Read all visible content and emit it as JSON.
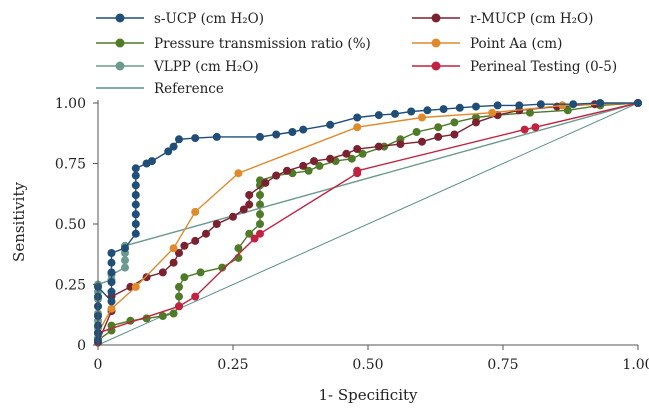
{
  "chart_data": {
    "type": "line",
    "xlabel": "1- Specificity",
    "ylabel": "Sensitivity",
    "xlim": [
      0,
      1
    ],
    "ylim": [
      0,
      1
    ],
    "x_ticks": [
      "0",
      "0.25",
      "0.50",
      "0.75",
      "1.00"
    ],
    "y_ticks": [
      "0",
      "0.25",
      "0.50",
      "0.75",
      "1.00"
    ],
    "grid": false,
    "legend_position": "top",
    "series": [
      {
        "name": "s-UCP (cm H₂O)",
        "color": "#1f4e79",
        "marker": "circle",
        "points": [
          [
            0,
            0.02
          ],
          [
            0,
            0.05
          ],
          [
            0,
            0.08
          ],
          [
            0,
            0.12
          ],
          [
            0,
            0.16
          ],
          [
            0,
            0.2
          ],
          [
            0,
            0.24
          ],
          [
            0.025,
            0.18
          ],
          [
            0.025,
            0.22
          ],
          [
            0.025,
            0.26
          ],
          [
            0.025,
            0.3
          ],
          [
            0.025,
            0.34
          ],
          [
            0.025,
            0.38
          ],
          [
            0.05,
            0.4
          ],
          [
            0.07,
            0.46
          ],
          [
            0.07,
            0.5
          ],
          [
            0.07,
            0.54
          ],
          [
            0.07,
            0.58
          ],
          [
            0.07,
            0.62
          ],
          [
            0.07,
            0.66
          ],
          [
            0.07,
            0.7
          ],
          [
            0.07,
            0.73
          ],
          [
            0.09,
            0.75
          ],
          [
            0.1,
            0.76
          ],
          [
            0.13,
            0.8
          ],
          [
            0.14,
            0.82
          ],
          [
            0.15,
            0.85
          ],
          [
            0.18,
            0.855
          ],
          [
            0.22,
            0.86
          ],
          [
            0.3,
            0.86
          ],
          [
            0.33,
            0.87
          ],
          [
            0.36,
            0.88
          ],
          [
            0.38,
            0.89
          ],
          [
            0.43,
            0.91
          ],
          [
            0.48,
            0.94
          ],
          [
            0.52,
            0.95
          ],
          [
            0.55,
            0.955
          ],
          [
            0.58,
            0.965
          ],
          [
            0.61,
            0.97
          ],
          [
            0.64,
            0.975
          ],
          [
            0.67,
            0.98
          ],
          [
            0.7,
            0.985
          ],
          [
            0.74,
            0.99
          ],
          [
            0.78,
            0.99
          ],
          [
            0.82,
            0.995
          ],
          [
            0.88,
            0.995
          ],
          [
            0.93,
            1
          ],
          [
            1,
            1
          ]
        ]
      },
      {
        "name": "Pressure transmission ratio (%)",
        "color": "#4f7a28",
        "marker": "circle",
        "points": [
          [
            0,
            0.02
          ],
          [
            0.025,
            0.06
          ],
          [
            0.025,
            0.08
          ],
          [
            0.06,
            0.1
          ],
          [
            0.09,
            0.11
          ],
          [
            0.12,
            0.12
          ],
          [
            0.14,
            0.13
          ],
          [
            0.15,
            0.16
          ],
          [
            0.15,
            0.2
          ],
          [
            0.15,
            0.24
          ],
          [
            0.16,
            0.28
          ],
          [
            0.19,
            0.3
          ],
          [
            0.23,
            0.32
          ],
          [
            0.26,
            0.36
          ],
          [
            0.26,
            0.4
          ],
          [
            0.28,
            0.46
          ],
          [
            0.3,
            0.5
          ],
          [
            0.3,
            0.54
          ],
          [
            0.3,
            0.58
          ],
          [
            0.3,
            0.62
          ],
          [
            0.3,
            0.66
          ],
          [
            0.3,
            0.68
          ],
          [
            0.33,
            0.7
          ],
          [
            0.36,
            0.71
          ],
          [
            0.39,
            0.72
          ],
          [
            0.41,
            0.74
          ],
          [
            0.44,
            0.76
          ],
          [
            0.47,
            0.77
          ],
          [
            0.49,
            0.79
          ],
          [
            0.53,
            0.82
          ],
          [
            0.56,
            0.85
          ],
          [
            0.59,
            0.88
          ],
          [
            0.63,
            0.9
          ],
          [
            0.66,
            0.92
          ],
          [
            0.7,
            0.94
          ],
          [
            0.74,
            0.95
          ],
          [
            0.8,
            0.96
          ],
          [
            0.87,
            0.97
          ],
          [
            0.93,
            0.99
          ],
          [
            1,
            1
          ]
        ]
      },
      {
        "name": "VLPP (cm H₂O)",
        "color": "#6d9a8e",
        "marker": "circle",
        "points": [
          [
            0,
            0.03
          ],
          [
            0,
            0.07
          ],
          [
            0,
            0.1
          ],
          [
            0,
            0.13
          ],
          [
            0,
            0.16
          ],
          [
            0,
            0.19
          ],
          [
            0,
            0.22
          ],
          [
            0,
            0.25
          ],
          [
            0.025,
            0.27
          ],
          [
            0.025,
            0.29
          ],
          [
            0.05,
            0.32
          ],
          [
            0.05,
            0.35
          ],
          [
            0.05,
            0.38
          ],
          [
            0.05,
            0.41
          ],
          [
            1,
            1
          ]
        ]
      },
      {
        "name": "r-MUCP (cm H₂O)",
        "color": "#7b2230",
        "marker": "circle",
        "points": [
          [
            0,
            0.01
          ],
          [
            0.025,
            0.14
          ],
          [
            0.025,
            0.2
          ],
          [
            0.06,
            0.24
          ],
          [
            0.09,
            0.28
          ],
          [
            0.12,
            0.3
          ],
          [
            0.14,
            0.34
          ],
          [
            0.15,
            0.38
          ],
          [
            0.16,
            0.41
          ],
          [
            0.18,
            0.43
          ],
          [
            0.2,
            0.46
          ],
          [
            0.22,
            0.5
          ],
          [
            0.25,
            0.53
          ],
          [
            0.27,
            0.56
          ],
          [
            0.28,
            0.58
          ],
          [
            0.28,
            0.62
          ],
          [
            0.31,
            0.67
          ],
          [
            0.33,
            0.7
          ],
          [
            0.35,
            0.72
          ],
          [
            0.38,
            0.74
          ],
          [
            0.4,
            0.76
          ],
          [
            0.43,
            0.77
          ],
          [
            0.46,
            0.79
          ],
          [
            0.48,
            0.81
          ],
          [
            0.52,
            0.82
          ],
          [
            0.56,
            0.83
          ],
          [
            0.6,
            0.84
          ],
          [
            0.63,
            0.86
          ],
          [
            0.66,
            0.87
          ],
          [
            0.7,
            0.92
          ],
          [
            0.74,
            0.95
          ],
          [
            0.78,
            0.97
          ],
          [
            0.85,
            0.985
          ],
          [
            0.92,
            0.995
          ],
          [
            1,
            1
          ]
        ]
      },
      {
        "name": "Point Aa (cm)",
        "color": "#e08a2c",
        "marker": "circle",
        "points": [
          [
            0,
            0.05
          ],
          [
            0.025,
            0.15
          ],
          [
            0.07,
            0.24
          ],
          [
            0.14,
            0.4
          ],
          [
            0.18,
            0.55
          ],
          [
            0.26,
            0.71
          ],
          [
            0.48,
            0.9
          ],
          [
            0.6,
            0.94
          ],
          [
            0.73,
            0.96
          ],
          [
            0.86,
            0.99
          ],
          [
            1,
            1
          ]
        ]
      },
      {
        "name": "Perineal Testing (0-5)",
        "color": "#c0223f",
        "marker": "circle",
        "points": [
          [
            0,
            0.05
          ],
          [
            0.15,
            0.16
          ],
          [
            0.18,
            0.2
          ],
          [
            0.29,
            0.44
          ],
          [
            0.3,
            0.46
          ],
          [
            0.48,
            0.71
          ],
          [
            0.48,
            0.72
          ],
          [
            0.79,
            0.89
          ],
          [
            0.81,
            0.9
          ],
          [
            1,
            1
          ]
        ]
      },
      {
        "name": "Reference",
        "color": "#5a8f8a",
        "marker": "none",
        "points": [
          [
            0,
            0
          ],
          [
            1,
            1
          ]
        ]
      }
    ]
  }
}
